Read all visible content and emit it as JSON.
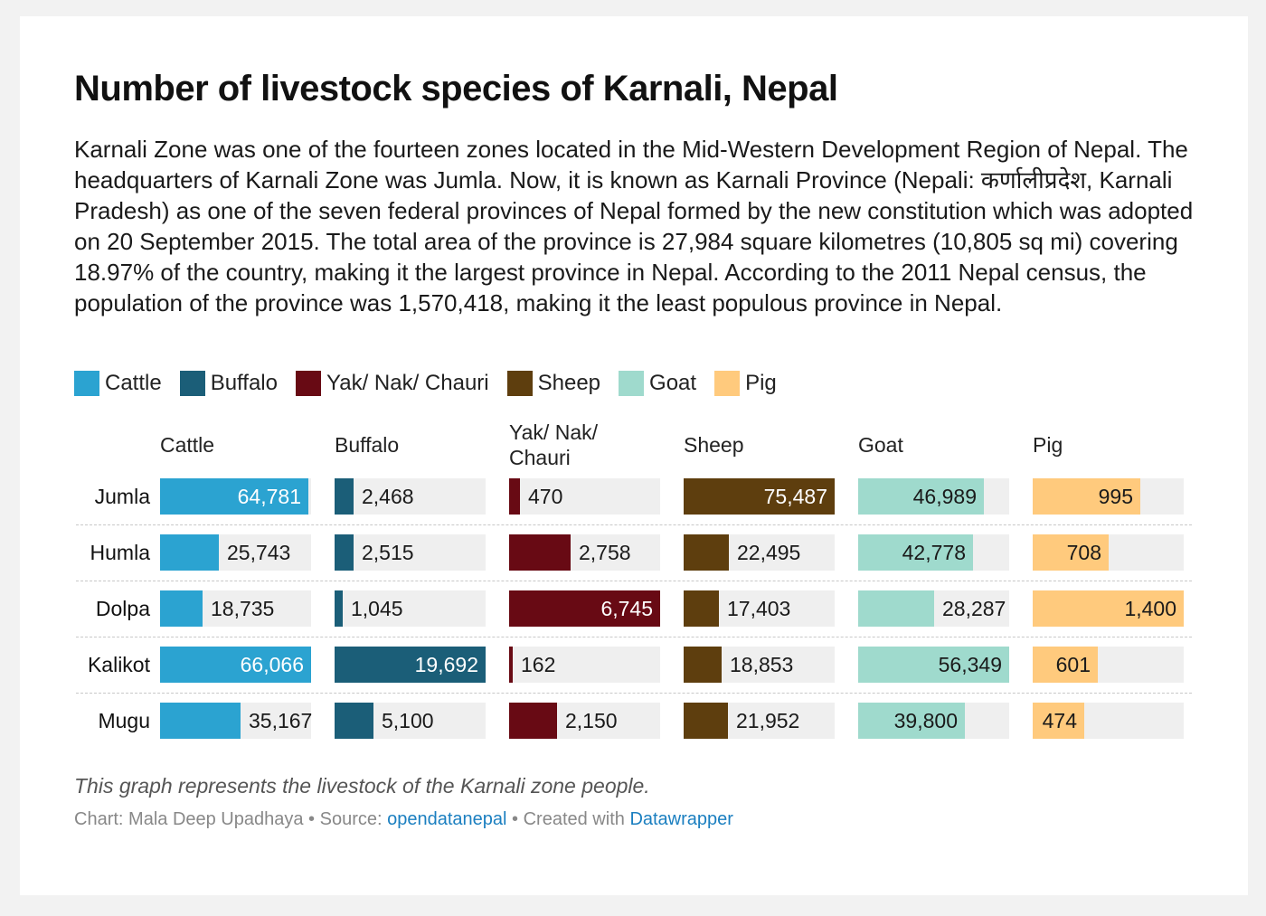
{
  "title": "Number of livestock species of Karnali, Nepal",
  "description": "Karnali Zone was one of the fourteen zones located in the Mid-Western Development Region of Nepal. The headquarters of Karnali Zone was Jumla. Now, it is known as Karnali Province (Nepali: कर्णालीप्रदेश, Karnali Pradesh) as one of the seven federal provinces of Nepal formed by the new constitution which was adopted on 20 September 2015. The total area of the province is 27,984 square kilometres (10,805 sq mi) covering 18.97% of the country, making it the largest province in Nepal. According to the 2011 Nepal census, the population of the province was 1,570,418, making it the least populous province in Nepal.",
  "chart_data": {
    "type": "bar",
    "layout": "small-multiples",
    "title": "Number of livestock species of Karnali, Nepal",
    "categories": [
      "Jumla",
      "Humla",
      "Dolpa",
      "Kalikot",
      "Mugu"
    ],
    "series": [
      {
        "name": "Cattle",
        "color": "#2ba3d1",
        "values": [
          64781,
          25743,
          18735,
          66066,
          35167
        ],
        "labels": [
          "64,781",
          "25,743",
          "18,735",
          "66,066",
          "35,167"
        ]
      },
      {
        "name": "Buffalo",
        "color": "#1b5e78",
        "values": [
          2468,
          2515,
          1045,
          19692,
          5100
        ],
        "labels": [
          "2,468",
          "2,515",
          "1,045",
          "19,692",
          "5,100"
        ]
      },
      {
        "name": "Yak/ Nak/ Chauri",
        "color": "#680a14",
        "values": [
          470,
          2758,
          6745,
          162,
          2150
        ],
        "labels": [
          "470",
          "2,758",
          "6,745",
          "162",
          "2,150"
        ]
      },
      {
        "name": "Sheep",
        "color": "#5e3e0e",
        "values": [
          75487,
          22495,
          17403,
          18853,
          21952
        ],
        "labels": [
          "75,487",
          "22,495",
          "17,403",
          "18,853",
          "21,952"
        ]
      },
      {
        "name": "Goat",
        "color": "#9fdacd",
        "values": [
          46989,
          42778,
          28287,
          56349,
          39800
        ],
        "labels": [
          "46,989",
          "42,778",
          "28,287",
          "56,349",
          "39,800"
        ]
      },
      {
        "name": "Pig",
        "color": "#ffca7d",
        "values": [
          995,
          708,
          1400,
          601,
          474
        ],
        "labels": [
          "995",
          "708",
          "1,400",
          "601",
          "474"
        ]
      }
    ],
    "xlabel": "",
    "ylabel": "",
    "grid": false,
    "legend_position": "top-left"
  },
  "notes": "This graph represents the livestock of the Karnali zone people.",
  "footer": {
    "chart_prefix": "Chart: ",
    "author": "Mala Deep Upadhaya",
    "separator": " • ",
    "source_prefix": "Source: ",
    "source_link": "opendatanepal",
    "created_prefix": "Created with ",
    "created_link": "Datawrapper"
  }
}
